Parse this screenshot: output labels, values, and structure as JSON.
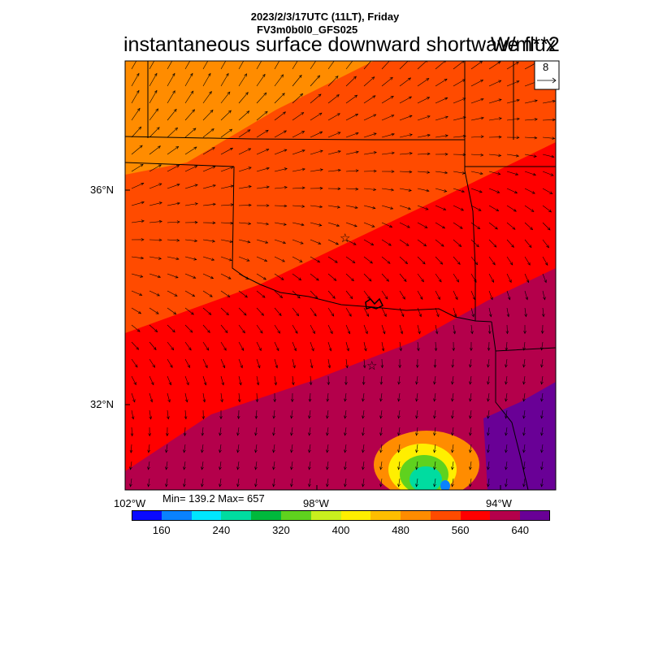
{
  "header": {
    "datetime": "2023/2/3/17UTC (11LT), Friday",
    "model": "FV3m0b0l0_GFS025",
    "variable": "instantaneous surface downward shortwave flux",
    "units": "W/m**2"
  },
  "vector_key": {
    "magnitude": "8"
  },
  "axes": {
    "lat_labels": [
      "36°N",
      "32°N"
    ],
    "lon_labels": [
      "102°W",
      "98°W",
      "94°W"
    ]
  },
  "stats": "Min= 139.2 Max= 657",
  "colorbar": {
    "colors": [
      "#0a0aff",
      "#0a82ff",
      "#00e6ff",
      "#00dca0",
      "#00b93c",
      "#5fd21e",
      "#c8f01e",
      "#ffef00",
      "#ffbe00",
      "#ff8c00",
      "#ff4b00",
      "#ff0000",
      "#b4004b",
      "#690096"
    ],
    "tick_labels": [
      "160",
      "240",
      "320",
      "400",
      "480",
      "560",
      "640"
    ]
  },
  "map_markers": [
    "☆",
    "☆"
  ],
  "chart_data": {
    "type": "heatmap",
    "title": "instantaneous surface downward shortwave flux",
    "units": "W/m**2",
    "min": 139.2,
    "max": 657,
    "levels": [
      140,
      160,
      200,
      240,
      280,
      320,
      360,
      400,
      440,
      480,
      520,
      560,
      600,
      640,
      680
    ],
    "lat_ticks": [
      36,
      32
    ],
    "lon_ticks": [
      -102,
      -98,
      -94
    ]
  }
}
